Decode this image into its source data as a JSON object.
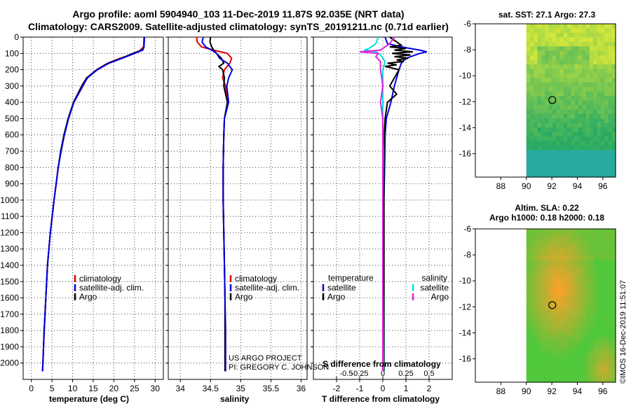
{
  "header": {
    "line1": "Argo profile: aoml 5904940_103 11-Dec-2019 11.87S 92.035E (NRT data)",
    "line2": "Climatology: CARS2009. Satellite-adjusted climatology: synTS_20191211.nc (0.71d earlier)"
  },
  "colors": {
    "climatology": "#e00000",
    "satellite": "#0000e0",
    "argo": "#000000",
    "sal_satellite": "#00e0e0",
    "sal_argo": "#e020e0"
  },
  "chart_data": [
    {
      "type": "line",
      "id": "temperature",
      "xlabel": "temperature (deg C)",
      "ylabel": "",
      "xlim": [
        -2,
        32
      ],
      "ylim": [
        2100,
        0
      ],
      "xticks": [
        0,
        5,
        10,
        15,
        20,
        25,
        30
      ],
      "xtick_labels": [
        "0",
        "5",
        "10",
        "15",
        "20",
        "25",
        "30"
      ],
      "yticks": [
        0,
        100,
        200,
        300,
        400,
        500,
        600,
        700,
        800,
        900,
        1000,
        1100,
        1200,
        1300,
        1400,
        1500,
        1600,
        1700,
        1800,
        1900,
        2000
      ],
      "ytick_labels": [
        "0",
        "100",
        "200",
        "300",
        "400",
        "500",
        "600",
        "700",
        "800",
        "900",
        "1000",
        "1100",
        "1200",
        "1300",
        "1400",
        "1500",
        "1600",
        "1700",
        "1800",
        "1900",
        "2000"
      ],
      "legend": [
        "climatology",
        "satellite-adj. clim.",
        "Argo"
      ],
      "series": [
        {
          "name": "climatology",
          "depth": [
            0,
            60,
            90,
            110,
            130,
            160,
            200,
            250,
            300,
            400,
            500,
            600,
            700,
            800,
            900,
            1000,
            1200,
            1400,
            1600,
            1800,
            2000,
            2050
          ],
          "values": [
            27.3,
            27.2,
            26.0,
            24.0,
            21.5,
            18.5,
            15.8,
            13.5,
            12.5,
            10.3,
            9.0,
            8.0,
            7.2,
            6.5,
            6.0,
            5.5,
            4.6,
            3.9,
            3.5,
            3.1,
            2.8,
            2.7
          ]
        },
        {
          "name": "satellite-adj. clim.",
          "depth": [
            0,
            60,
            80,
            100,
            130,
            160,
            200,
            250,
            300,
            400,
            500,
            600,
            700,
            800,
            900,
            1000,
            1200,
            1400,
            1600,
            1800,
            2000,
            2050
          ],
          "values": [
            27.4,
            27.3,
            27.0,
            25.0,
            22.0,
            18.8,
            16.0,
            13.6,
            12.4,
            10.3,
            9.0,
            8.0,
            7.2,
            6.5,
            6.0,
            5.5,
            4.6,
            3.9,
            3.5,
            3.1,
            2.8,
            2.7
          ]
        },
        {
          "name": "Argo",
          "depth": [
            0,
            60,
            80,
            100,
            130,
            160,
            200,
            250,
            300,
            400,
            500,
            600,
            700,
            800,
            900,
            1000,
            1200,
            1400,
            1600,
            1800,
            2000,
            2050
          ],
          "values": [
            27.4,
            27.3,
            26.8,
            24.6,
            21.8,
            18.6,
            15.9,
            13.4,
            12.2,
            10.2,
            8.9,
            7.9,
            7.1,
            6.5,
            6.0,
            5.5,
            4.6,
            3.9,
            3.5,
            3.1,
            2.8,
            2.7
          ]
        }
      ]
    },
    {
      "type": "line",
      "id": "salinity",
      "xlabel": "salinity",
      "ylabel": "",
      "xlim": [
        33.8,
        36.1
      ],
      "ylim": [
        2100,
        0
      ],
      "xticks": [
        34,
        34.5,
        35,
        35.5,
        36
      ],
      "xtick_labels": [
        "34",
        "34.5",
        "35",
        "35.5",
        "36"
      ],
      "legend": [
        "climatology",
        "satellite-adj. clim.",
        "Argo"
      ],
      "series": [
        {
          "name": "climatology",
          "depth": [
            0,
            30,
            60,
            80,
            100,
            130,
            160,
            200,
            250,
            300,
            400,
            500,
            600,
            800,
            1000,
            1200,
            1400,
            1600,
            1800,
            2000,
            2050
          ],
          "values": [
            34.27,
            34.28,
            34.35,
            34.55,
            34.78,
            34.85,
            34.82,
            34.73,
            34.7,
            34.75,
            34.78,
            34.73,
            34.72,
            34.71,
            34.71,
            34.72,
            34.73,
            34.74,
            34.74,
            34.74,
            34.74
          ]
        },
        {
          "name": "satellite-adj. clim.",
          "depth": [
            0,
            30,
            60,
            80,
            100,
            130,
            160,
            200,
            250,
            300,
            400,
            500,
            600,
            800,
            1000,
            1200,
            1400,
            1600,
            1800,
            2000,
            2050
          ],
          "values": [
            34.38,
            34.36,
            34.42,
            34.52,
            34.6,
            34.65,
            34.78,
            34.86,
            34.8,
            34.77,
            34.8,
            34.73,
            34.72,
            34.71,
            34.71,
            34.72,
            34.73,
            34.74,
            34.75,
            34.75,
            34.75
          ]
        },
        {
          "name": "Argo",
          "depth": [
            0,
            30,
            60,
            80,
            100,
            130,
            160,
            180,
            200,
            250,
            300,
            400,
            500,
            600,
            800,
            1000,
            1200,
            1400,
            1600,
            1800,
            2000,
            2050
          ],
          "values": [
            34.5,
            34.49,
            34.52,
            34.55,
            34.6,
            34.68,
            34.72,
            34.64,
            34.7,
            34.73,
            34.72,
            34.78,
            34.73,
            34.72,
            34.71,
            34.71,
            34.72,
            34.73,
            34.74,
            34.74,
            34.74,
            34.74
          ]
        }
      ]
    },
    {
      "type": "line",
      "id": "difference",
      "xlabel": "T difference from climatology",
      "top_xlabel": "S difference from climatology",
      "xlim": [
        -3,
        3
      ],
      "ylim": [
        2100,
        0
      ],
      "xticks": [
        -2,
        -1,
        0,
        1,
        2
      ],
      "xtick_labels": [
        "-2",
        "-1",
        "0",
        "1",
        "2"
      ],
      "top_xticks": [
        -2,
        -1,
        0,
        1,
        2
      ],
      "top_xtick_labels": [
        "-0.5",
        "-0.25",
        "0",
        "0.25",
        "0.5"
      ],
      "legend_temperature_title": "temperature",
      "legend_temperature": [
        "satellite",
        "Argo"
      ],
      "legend_salinity_title": "salinity",
      "legend_salinity": [
        "satellite",
        "Argo"
      ],
      "series": [
        {
          "name": "T satellite",
          "depth": [
            0,
            40,
            60,
            80,
            90,
            100,
            130,
            160,
            200,
            250,
            300,
            400,
            500,
            600,
            800,
            1000,
            1500,
            2000,
            2050
          ],
          "values": [
            0.1,
            0.2,
            0.8,
            1.6,
            1.9,
            1.6,
            1.0,
            0.8,
            0.7,
            0.6,
            0.5,
            0.35,
            0.15,
            0.1,
            0.08,
            0.05,
            0.05,
            0.05,
            0.05
          ]
        },
        {
          "name": "T Argo",
          "depth": [
            0,
            50,
            60,
            70,
            80,
            90,
            100,
            110,
            120,
            130,
            140,
            150,
            160,
            170,
            180,
            200,
            250,
            300,
            350,
            400,
            500,
            600,
            800,
            1000,
            1500,
            2000,
            2050
          ],
          "values": [
            0.3,
            0.8,
            0.3,
            1.0,
            0.5,
            1.3,
            0.4,
            1.2,
            0.5,
            1.1,
            0.6,
            0.9,
            0.2,
            0.6,
            0.1,
            0.7,
            0.5,
            0.3,
            0.6,
            0.2,
            0.1,
            0.06,
            0.05,
            0.05,
            0.05,
            0.05,
            0.05
          ]
        },
        {
          "name": "S satellite",
          "depth": [
            0,
            40,
            70,
            80,
            90,
            110,
            150,
            200,
            300,
            500,
            700,
            1000,
            1500,
            2000,
            2050
          ],
          "values": [
            -0.2,
            -0.3,
            -0.6,
            -0.8,
            -0.3,
            -0.1,
            0.1,
            0.0,
            0.0,
            0.0,
            0.02,
            0.0,
            0.0,
            0.02,
            0.02
          ]
        },
        {
          "name": "S Argo",
          "depth": [
            0,
            40,
            80,
            90,
            100,
            120,
            150,
            200,
            250,
            300,
            400,
            500,
            700,
            1000,
            1500,
            2000,
            2050
          ],
          "values": [
            0.5,
            0.3,
            -0.1,
            -1.0,
            -0.2,
            -0.3,
            -0.1,
            -0.1,
            -0.05,
            0.0,
            -0.1,
            0.0,
            0.0,
            0.0,
            0.0,
            0.0,
            0.0
          ]
        }
      ]
    },
    {
      "type": "heatmap",
      "id": "sst_map",
      "title": "sat. SST: 27.1 Argo: 27.3",
      "xlim": [
        86,
        97
      ],
      "ylim": [
        -17.8,
        -6
      ],
      "xticks": [
        88,
        90,
        92,
        94,
        96
      ],
      "xtick_labels": [
        "88",
        "90",
        "92",
        "94",
        "96"
      ],
      "yticks": [
        -6,
        -8,
        -10,
        -12,
        -14,
        -16
      ],
      "ytick_labels": [
        "-6",
        "-8",
        "-10",
        "-12",
        "-14",
        "-16"
      ],
      "data_region_lon_start": 90,
      "argo_position": [
        92.035,
        -11.87
      ]
    },
    {
      "type": "heatmap",
      "id": "sla_map",
      "title_line1": "Altim. SLA: 0.22",
      "title_line2": "Argo h1000: 0.18 h2000: 0.18",
      "xlim": [
        86,
        97
      ],
      "ylim": [
        -17.8,
        -6
      ],
      "xticks": [
        88,
        90,
        92,
        94,
        96
      ],
      "xtick_labels": [
        "88",
        "90",
        "92",
        "94",
        "96"
      ],
      "yticks": [
        -6,
        -8,
        -10,
        -12,
        -14,
        -16
      ],
      "ytick_labels": [
        "-6",
        "-8",
        "-10",
        "-12",
        "-14",
        "-16"
      ],
      "data_region_lon_start": 90,
      "argo_position": [
        92.035,
        -11.87
      ]
    }
  ],
  "footer": {
    "project_line1": "US ARGO PROJECT",
    "project_line2": "PI: GREGORY C. JOHNSON",
    "imos_stamp": "©IMOS 16-Dec-2019 11:51:07"
  }
}
